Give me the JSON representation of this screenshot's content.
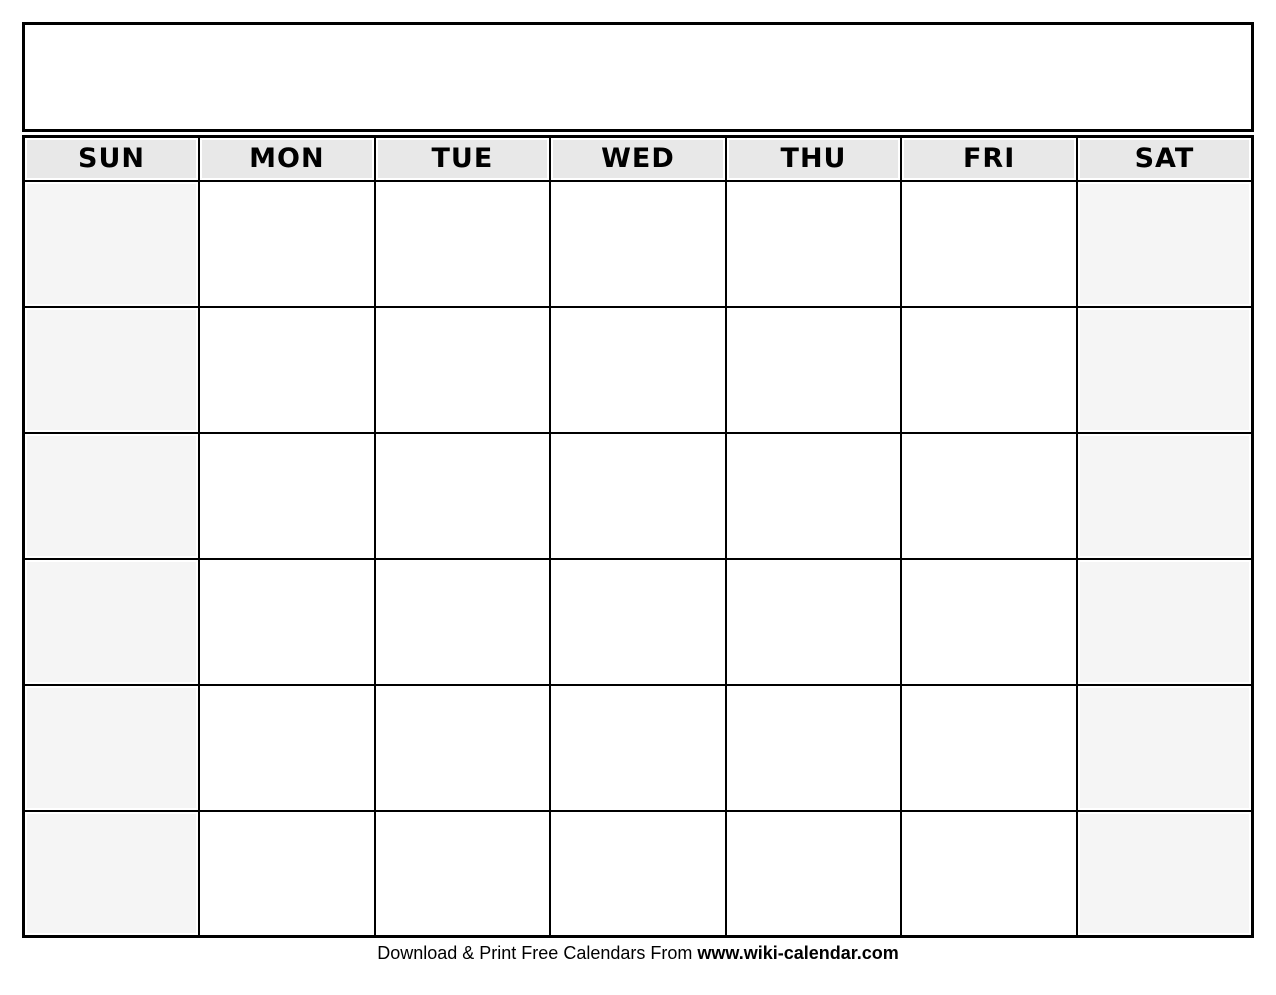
{
  "calendar": {
    "title": "",
    "day_headers": [
      "SUN",
      "MON",
      "TUE",
      "WED",
      "THU",
      "FRI",
      "SAT"
    ],
    "weeks": 6,
    "days_per_week": 7,
    "weekend_column_indexes": [
      0,
      6
    ],
    "cell_values": []
  },
  "footer": {
    "prefix": "Download & Print Free Calendars From ",
    "site": "www.wiki-calendar.com"
  },
  "colors": {
    "header_bg": "#e8e8e8",
    "weekend_bg": "#f5f5f5",
    "grid_line": "#000000",
    "page_bg": "#ffffff"
  }
}
